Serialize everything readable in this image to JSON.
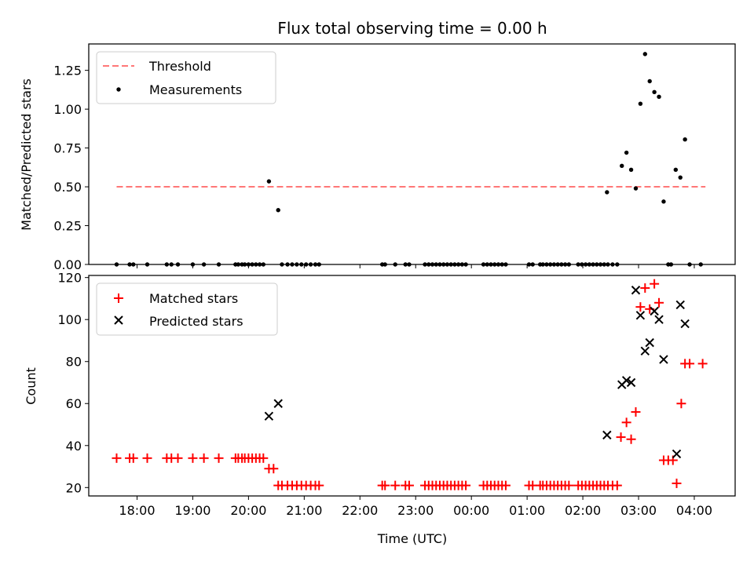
{
  "chart_data": [
    {
      "type": "scatter",
      "title": "Flux total observing time = 0.00 h",
      "ylabel": "Matched/Predicted stars",
      "xlabel": "",
      "ylim": [
        0,
        1.42
      ],
      "yticks": [
        0.0,
        0.25,
        0.5,
        0.75,
        1.0,
        1.25
      ],
      "ytick_labels": [
        "0.00",
        "0.25",
        "0.50",
        "0.75",
        "1.00",
        "1.25"
      ],
      "legend_position": "upper-left",
      "threshold": {
        "name": "Threshold",
        "value": 0.5,
        "x_start": "17:38",
        "x_end": "04:12",
        "color": "#ff7777"
      },
      "series": [
        {
          "name": "Measurements",
          "color": "#000000",
          "marker": "dot",
          "points": [
            [
              "17:38",
              0
            ],
            [
              "17:52",
              0
            ],
            [
              "17:56",
              0
            ],
            [
              "18:11",
              0
            ],
            [
              "18:32",
              0
            ],
            [
              "18:37",
              0
            ],
            [
              "18:44",
              0
            ],
            [
              "19:00",
              0
            ],
            [
              "19:12",
              0
            ],
            [
              "19:28",
              0
            ],
            [
              "19:46",
              0
            ],
            [
              "19:49",
              0
            ],
            [
              "19:53",
              0
            ],
            [
              "19:56",
              0
            ],
            [
              "20:00",
              0
            ],
            [
              "20:04",
              0
            ],
            [
              "20:08",
              0
            ],
            [
              "20:12",
              0
            ],
            [
              "20:16",
              0
            ],
            [
              "20:22",
              0.535
            ],
            [
              "20:32",
              0.35
            ],
            [
              "20:36",
              0
            ],
            [
              "20:42",
              0
            ],
            [
              "20:47",
              0
            ],
            [
              "20:52",
              0
            ],
            [
              "20:57",
              0
            ],
            [
              "21:02",
              0
            ],
            [
              "21:07",
              0
            ],
            [
              "21:12",
              0
            ],
            [
              "21:16",
              0
            ],
            [
              "22:24",
              0
            ],
            [
              "22:27",
              0
            ],
            [
              "22:38",
              0
            ],
            [
              "22:49",
              0
            ],
            [
              "22:53",
              0
            ],
            [
              "23:10",
              0
            ],
            [
              "23:14",
              0
            ],
            [
              "23:18",
              0
            ],
            [
              "23:22",
              0
            ],
            [
              "23:26",
              0
            ],
            [
              "23:30",
              0
            ],
            [
              "23:34",
              0
            ],
            [
              "23:38",
              0
            ],
            [
              "23:42",
              0
            ],
            [
              "23:46",
              0
            ],
            [
              "23:50",
              0
            ],
            [
              "23:54",
              0
            ],
            [
              "00:13",
              0
            ],
            [
              "00:17",
              0
            ],
            [
              "00:21",
              0
            ],
            [
              "00:25",
              0
            ],
            [
              "00:29",
              0
            ],
            [
              "00:33",
              0
            ],
            [
              "00:37",
              0
            ],
            [
              "01:02",
              0
            ],
            [
              "01:06",
              0
            ],
            [
              "01:14",
              0
            ],
            [
              "01:17",
              0
            ],
            [
              "01:21",
              0
            ],
            [
              "01:25",
              0
            ],
            [
              "01:29",
              0
            ],
            [
              "01:33",
              0
            ],
            [
              "01:37",
              0
            ],
            [
              "01:41",
              0
            ],
            [
              "01:45",
              0
            ],
            [
              "01:55",
              0
            ],
            [
              "01:59",
              0
            ],
            [
              "02:03",
              0
            ],
            [
              "02:07",
              0
            ],
            [
              "02:11",
              0
            ],
            [
              "02:15",
              0
            ],
            [
              "02:19",
              0
            ],
            [
              "02:23",
              0
            ],
            [
              "02:27",
              0
            ],
            [
              "02:32",
              0
            ],
            [
              "02:37",
              0
            ],
            [
              "02:26",
              0.465
            ],
            [
              "02:42",
              0.635
            ],
            [
              "02:47",
              0.72
            ],
            [
              "02:52",
              0.61
            ],
            [
              "02:57",
              0.49
            ],
            [
              "03:02",
              1.035
            ],
            [
              "03:07",
              1.355
            ],
            [
              "03:12",
              1.18
            ],
            [
              "03:17",
              1.11
            ],
            [
              "03:22",
              1.08
            ],
            [
              "03:27",
              0.405
            ],
            [
              "03:32",
              0
            ],
            [
              "03:35",
              0
            ],
            [
              "03:40",
              0.61
            ],
            [
              "03:45",
              0.56
            ],
            [
              "03:50",
              0.805
            ],
            [
              "03:55",
              0
            ],
            [
              "04:07",
              0
            ]
          ]
        }
      ]
    },
    {
      "type": "scatter",
      "title": "",
      "ylabel": "Count",
      "xlabel": "Time (UTC)",
      "ylim": [
        16,
        121
      ],
      "yticks": [
        20,
        40,
        60,
        80,
        100,
        120
      ],
      "ytick_labels": [
        "20",
        "40",
        "60",
        "80",
        "100",
        "120"
      ],
      "x_start": "17:08",
      "x_end": "04:44",
      "xticks": [
        "18:00",
        "19:00",
        "20:00",
        "21:00",
        "22:00",
        "23:00",
        "00:00",
        "01:00",
        "02:00",
        "03:00",
        "04:00"
      ],
      "legend_position": "upper-left",
      "series": [
        {
          "name": "Matched stars",
          "color": "#ff0000",
          "marker": "plus",
          "points": [
            [
              "17:38",
              34
            ],
            [
              "17:52",
              34
            ],
            [
              "17:56",
              34
            ],
            [
              "18:11",
              34
            ],
            [
              "18:32",
              34
            ],
            [
              "18:37",
              34
            ],
            [
              "18:44",
              34
            ],
            [
              "19:00",
              34
            ],
            [
              "19:12",
              34
            ],
            [
              "19:28",
              34
            ],
            [
              "19:46",
              34
            ],
            [
              "19:49",
              34
            ],
            [
              "19:53",
              34
            ],
            [
              "19:56",
              34
            ],
            [
              "20:00",
              34
            ],
            [
              "20:04",
              34
            ],
            [
              "20:08",
              34
            ],
            [
              "20:12",
              34
            ],
            [
              "20:16",
              34
            ],
            [
              "20:22",
              29
            ],
            [
              "20:27",
              29
            ],
            [
              "20:32",
              21
            ],
            [
              "20:36",
              21
            ],
            [
              "20:42",
              21
            ],
            [
              "20:47",
              21
            ],
            [
              "20:52",
              21
            ],
            [
              "20:57",
              21
            ],
            [
              "21:02",
              21
            ],
            [
              "21:07",
              21
            ],
            [
              "21:12",
              21
            ],
            [
              "21:16",
              21
            ],
            [
              "22:24",
              21
            ],
            [
              "22:27",
              21
            ],
            [
              "22:38",
              21
            ],
            [
              "22:49",
              21
            ],
            [
              "22:53",
              21
            ],
            [
              "23:10",
              21
            ],
            [
              "23:14",
              21
            ],
            [
              "23:18",
              21
            ],
            [
              "23:22",
              21
            ],
            [
              "23:26",
              21
            ],
            [
              "23:30",
              21
            ],
            [
              "23:34",
              21
            ],
            [
              "23:38",
              21
            ],
            [
              "23:42",
              21
            ],
            [
              "23:46",
              21
            ],
            [
              "23:50",
              21
            ],
            [
              "23:54",
              21
            ],
            [
              "00:13",
              21
            ],
            [
              "00:17",
              21
            ],
            [
              "00:21",
              21
            ],
            [
              "00:25",
              21
            ],
            [
              "00:29",
              21
            ],
            [
              "00:33",
              21
            ],
            [
              "00:37",
              21
            ],
            [
              "01:02",
              21
            ],
            [
              "01:06",
              21
            ],
            [
              "01:14",
              21
            ],
            [
              "01:17",
              21
            ],
            [
              "01:21",
              21
            ],
            [
              "01:25",
              21
            ],
            [
              "01:29",
              21
            ],
            [
              "01:33",
              21
            ],
            [
              "01:37",
              21
            ],
            [
              "01:41",
              21
            ],
            [
              "01:45",
              21
            ],
            [
              "01:55",
              21
            ],
            [
              "01:59",
              21
            ],
            [
              "02:03",
              21
            ],
            [
              "02:07",
              21
            ],
            [
              "02:11",
              21
            ],
            [
              "02:15",
              21
            ],
            [
              "02:19",
              21
            ],
            [
              "02:23",
              21
            ],
            [
              "02:27",
              21
            ],
            [
              "02:32",
              21
            ],
            [
              "02:37",
              21
            ],
            [
              "02:41",
              44
            ],
            [
              "02:47",
              51
            ],
            [
              "02:52",
              43
            ],
            [
              "02:57",
              56
            ],
            [
              "03:02",
              106
            ],
            [
              "03:07",
              115
            ],
            [
              "03:12",
              105
            ],
            [
              "03:17",
              117
            ],
            [
              "03:22",
              108
            ],
            [
              "03:27",
              33
            ],
            [
              "03:32",
              33
            ],
            [
              "03:37",
              33
            ],
            [
              "03:41",
              22
            ],
            [
              "03:46",
              60
            ],
            [
              "03:50",
              79
            ],
            [
              "03:55",
              79
            ],
            [
              "04:09",
              79
            ]
          ]
        },
        {
          "name": "Predicted stars",
          "color": "#000000",
          "marker": "x",
          "points": [
            [
              "20:22",
              54
            ],
            [
              "20:32",
              60
            ],
            [
              "02:26",
              45
            ],
            [
              "02:42",
              69
            ],
            [
              "02:47",
              71
            ],
            [
              "02:52",
              70
            ],
            [
              "02:57",
              114
            ],
            [
              "03:02",
              102
            ],
            [
              "03:07",
              85
            ],
            [
              "03:12",
              89
            ],
            [
              "03:17",
              104
            ],
            [
              "03:22",
              100
            ],
            [
              "03:27",
              81
            ],
            [
              "03:41",
              36
            ],
            [
              "03:45",
              107
            ],
            [
              "03:50",
              98
            ]
          ]
        }
      ]
    }
  ]
}
